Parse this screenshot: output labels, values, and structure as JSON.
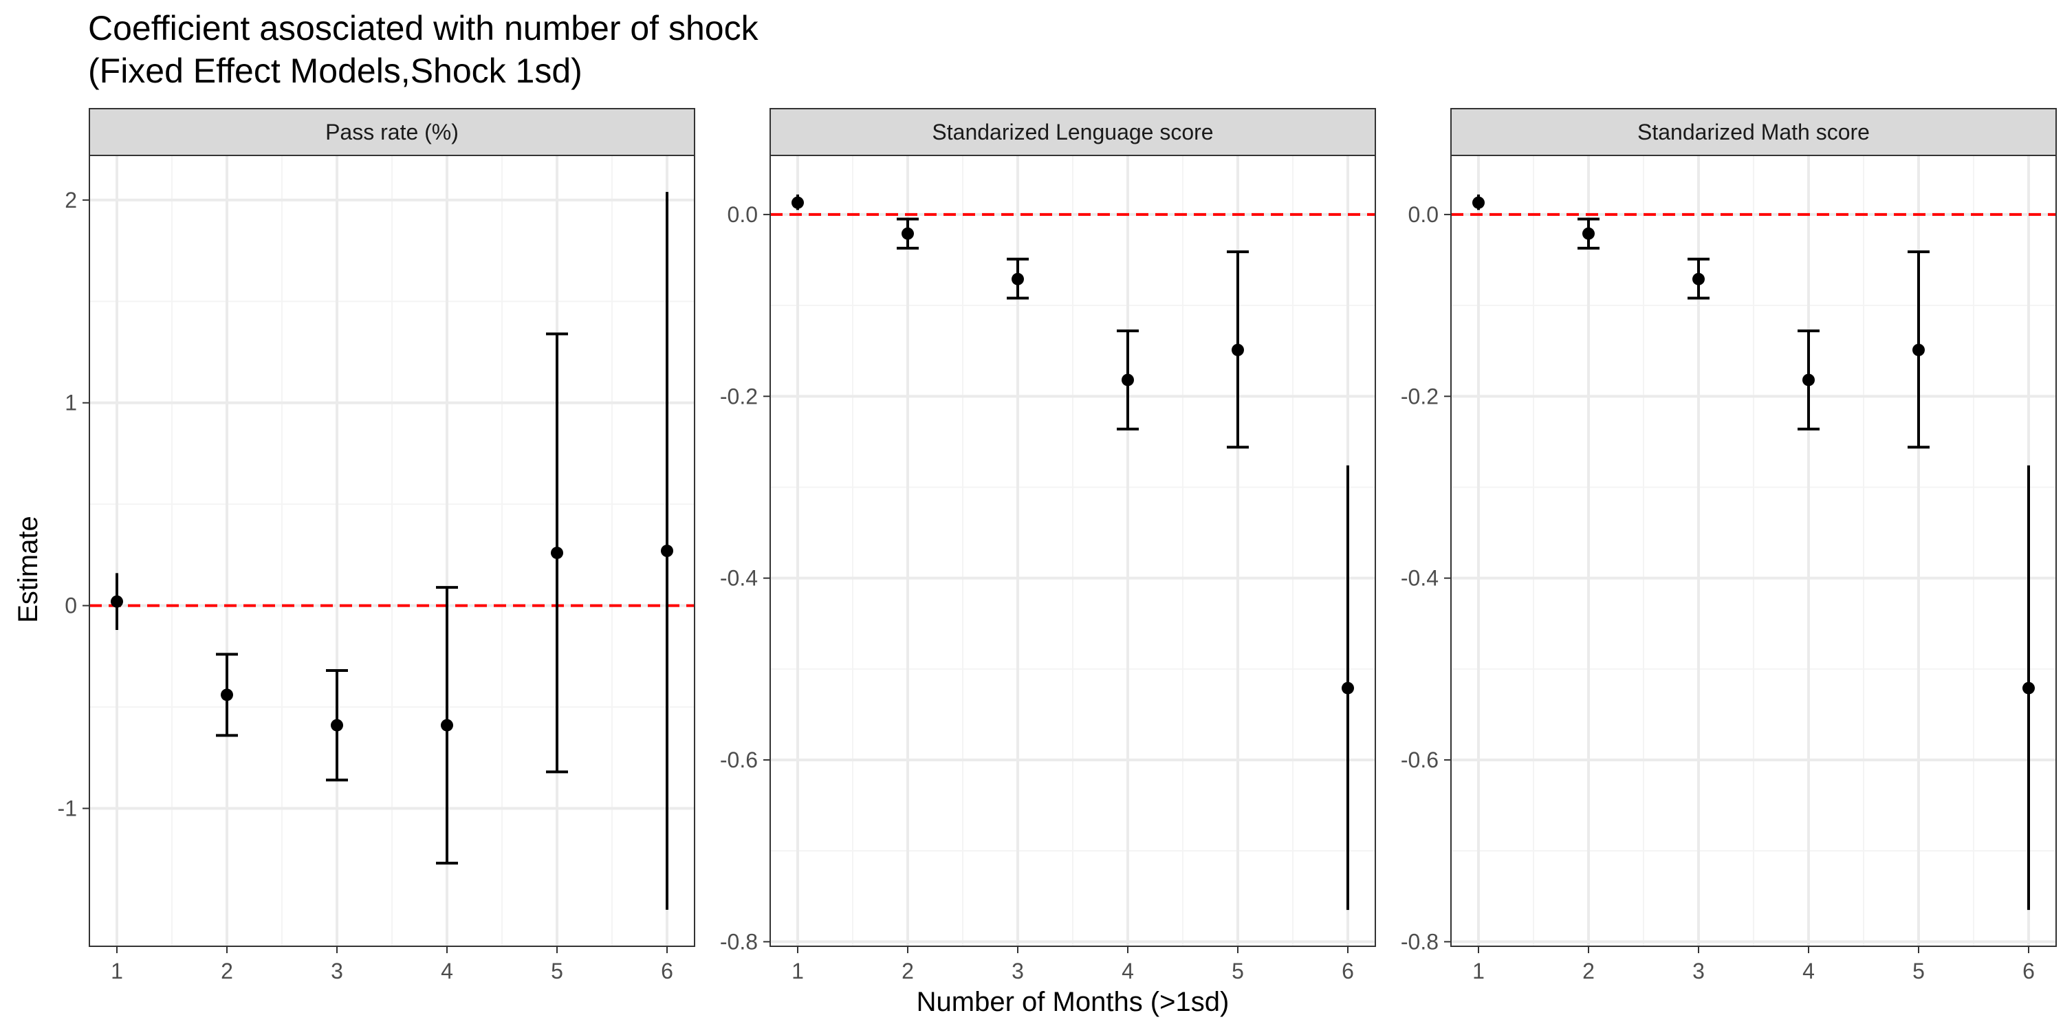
{
  "chart_data": {
    "type": "scatter",
    "title_lines": [
      "Coefficient asosciated with number of shock",
      "(Fixed Effect Models,Shock 1sd)"
    ],
    "xlabel": "Number of Months (>1sd)",
    "ylabel": "Estimate",
    "grid": true,
    "reference_line": {
      "y": 0,
      "color": "#ff0000",
      "style": "dashed"
    },
    "colors": {
      "points": "#000000",
      "strip_fill": "#d9d9d9",
      "grid": "#ebebeb",
      "panel_border": "#333333"
    },
    "x_ticks": [
      1,
      2,
      3,
      4,
      5,
      6
    ],
    "panels": [
      {
        "strip": "Pass rate (%)",
        "ylim": [
          -1.68,
          2.22
        ],
        "y_ticks": [
          -1,
          0,
          1,
          2
        ],
        "y_tick_labels": [
          "-1",
          "0",
          "1",
          "2"
        ],
        "points": [
          {
            "x": 1,
            "y": 0.02,
            "lo": -0.12,
            "hi": 0.16,
            "caps": false
          },
          {
            "x": 2,
            "y": -0.44,
            "lo": -0.64,
            "hi": -0.24,
            "caps": true
          },
          {
            "x": 3,
            "y": -0.59,
            "lo": -0.86,
            "hi": -0.32,
            "caps": true
          },
          {
            "x": 4,
            "y": -0.59,
            "lo": -1.27,
            "hi": 0.09,
            "caps": true
          },
          {
            "x": 5,
            "y": 0.26,
            "lo": -0.82,
            "hi": 1.34,
            "caps": true
          },
          {
            "x": 6,
            "y": 0.27,
            "lo": -1.5,
            "hi": 2.04,
            "caps": false
          }
        ]
      },
      {
        "strip": "Standarized Lenguage score",
        "ylim": [
          -0.805,
          0.065
        ],
        "y_ticks": [
          -0.8,
          -0.6,
          -0.4,
          -0.2,
          0.0
        ],
        "y_tick_labels": [
          "-0.8",
          "-0.6",
          "-0.4",
          "-0.2",
          "0.0"
        ],
        "points": [
          {
            "x": 1,
            "y": 0.013,
            "lo": 0.005,
            "hi": 0.022,
            "caps": false
          },
          {
            "x": 2,
            "y": -0.021,
            "lo": -0.037,
            "hi": -0.005,
            "caps": true
          },
          {
            "x": 3,
            "y": -0.071,
            "lo": -0.092,
            "hi": -0.049,
            "caps": true
          },
          {
            "x": 4,
            "y": -0.182,
            "lo": -0.236,
            "hi": -0.128,
            "caps": true
          },
          {
            "x": 5,
            "y": -0.149,
            "lo": -0.256,
            "hi": -0.041,
            "caps": true
          },
          {
            "x": 6,
            "y": -0.521,
            "lo": -0.765,
            "hi": -0.276,
            "caps": false
          }
        ]
      },
      {
        "strip": "Standarized Math score",
        "ylim": [
          -0.805,
          0.065
        ],
        "y_ticks": [
          -0.8,
          -0.6,
          -0.4,
          -0.2,
          0.0
        ],
        "y_tick_labels": [
          "-0.8",
          "-0.6",
          "-0.4",
          "-0.2",
          "0.0"
        ],
        "points": [
          {
            "x": 1,
            "y": 0.013,
            "lo": 0.005,
            "hi": 0.022,
            "caps": false
          },
          {
            "x": 2,
            "y": -0.021,
            "lo": -0.037,
            "hi": -0.005,
            "caps": true
          },
          {
            "x": 3,
            "y": -0.071,
            "lo": -0.092,
            "hi": -0.049,
            "caps": true
          },
          {
            "x": 4,
            "y": -0.182,
            "lo": -0.236,
            "hi": -0.128,
            "caps": true
          },
          {
            "x": 5,
            "y": -0.149,
            "lo": -0.256,
            "hi": -0.041,
            "caps": true
          },
          {
            "x": 6,
            "y": -0.521,
            "lo": -0.765,
            "hi": -0.276,
            "caps": false
          }
        ]
      }
    ]
  }
}
